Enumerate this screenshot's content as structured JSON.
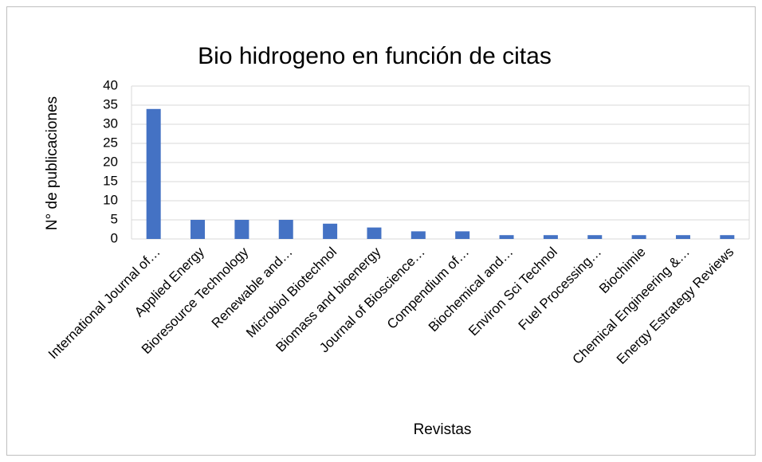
{
  "chart_data": {
    "type": "bar",
    "title": "Bio hidrogeno en función de citas",
    "x_label": "Revistas",
    "y_label": "N° de publicaciones",
    "categories": [
      "International Journal of…",
      "Applied Energy",
      "Bioresource Technology",
      "Renewable and…",
      "Microbiol Biotechnol",
      "Biomass and bioenergy",
      "Journal of Bioscience…",
      "Compendium of…",
      "Biochemical and…",
      "Environ Sci Technol",
      "Fuel Processing…",
      "Biochimie",
      "Chemical Engineering &…",
      "Energy Estrategy Reviews"
    ],
    "values": [
      34,
      5,
      5,
      5,
      4,
      3,
      2,
      2,
      1,
      1,
      1,
      1,
      1,
      1
    ],
    "color": "#4472c4",
    "ylim": [
      0,
      40
    ],
    "yticks": [
      0,
      5,
      10,
      15,
      20,
      25,
      30,
      35,
      40
    ],
    "grid": true
  }
}
